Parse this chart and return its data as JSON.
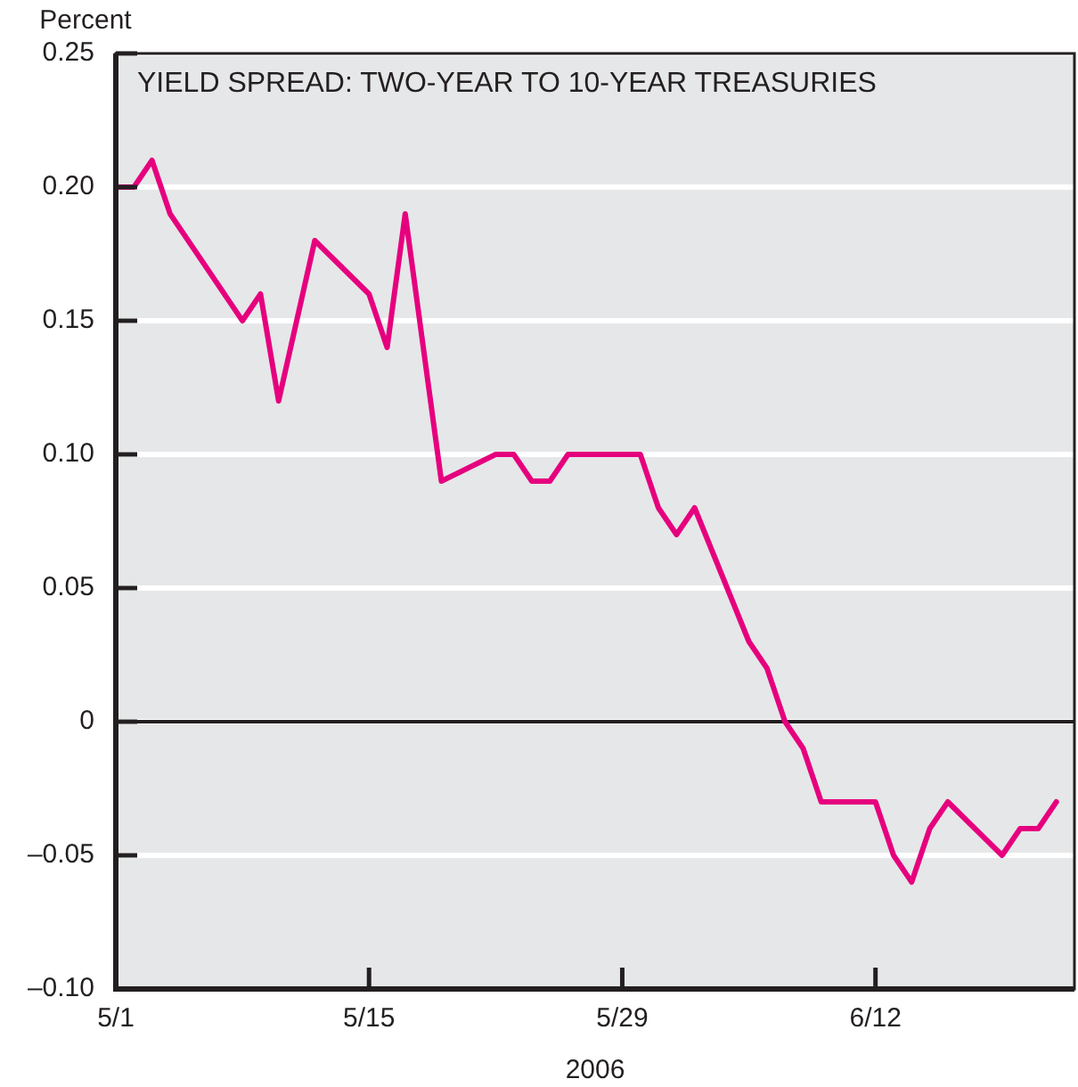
{
  "chart_data": {
    "type": "line",
    "title": "YIELD SPREAD: TWO-YEAR TO 10-YEAR TREASURIES",
    "ylabel": "Percent",
    "xlabel": "2006",
    "x": [
      "2006-05-01",
      "2006-05-02",
      "2006-05-03",
      "2006-05-04",
      "2006-05-08",
      "2006-05-09",
      "2006-05-10",
      "2006-05-12",
      "2006-05-15",
      "2006-05-16",
      "2006-05-17",
      "2006-05-19",
      "2006-05-22",
      "2006-05-23",
      "2006-05-24",
      "2006-05-25",
      "2006-05-26",
      "2006-05-30",
      "2006-05-31",
      "2006-06-01",
      "2006-06-02",
      "2006-06-05",
      "2006-06-06",
      "2006-06-07",
      "2006-06-08",
      "2006-06-09",
      "2006-06-12",
      "2006-06-13",
      "2006-06-14",
      "2006-06-15",
      "2006-06-16",
      "2006-06-19",
      "2006-06-20",
      "2006-06-21",
      "2006-06-22"
    ],
    "series": [
      {
        "color": "#e6007e",
        "values": [
          0.2,
          0.2,
          0.21,
          0.19,
          0.15,
          0.16,
          0.12,
          0.18,
          0.16,
          0.14,
          0.19,
          0.09,
          0.1,
          0.1,
          0.09,
          0.09,
          0.1,
          0.1,
          0.08,
          0.07,
          0.08,
          0.03,
          0.02,
          0.0,
          -0.01,
          -0.03,
          -0.03,
          -0.05,
          -0.06,
          -0.04,
          -0.03,
          -0.05,
          -0.04,
          -0.04,
          -0.03
        ]
      }
    ],
    "xlim": [
      "2006-05-01",
      "2006-06-23"
    ],
    "xticks": [
      {
        "value": "2006-05-01",
        "label": "5/1"
      },
      {
        "value": "2006-05-15",
        "label": "5/15"
      },
      {
        "value": "2006-05-29",
        "label": "5/29"
      },
      {
        "value": "2006-06-12",
        "label": "6/12"
      }
    ],
    "ylim": [
      -0.1,
      0.25
    ],
    "yticks": [
      {
        "value": -0.1,
        "label": "–0.10"
      },
      {
        "value": -0.05,
        "label": "–0.05"
      },
      0,
      {
        "value": 0.05,
        "label": "0.05"
      },
      {
        "value": 0.1,
        "label": "0.10"
      },
      {
        "value": 0.15,
        "label": "0.15"
      },
      {
        "value": 0.2,
        "label": "0.20"
      },
      {
        "value": 0.25,
        "label": "0.25"
      }
    ],
    "ref_lines": [
      {
        "axis": "y",
        "value": 0,
        "color": "#231f20"
      }
    ],
    "grid": "y",
    "legend": false,
    "marker": "none",
    "line_style": "solid"
  }
}
